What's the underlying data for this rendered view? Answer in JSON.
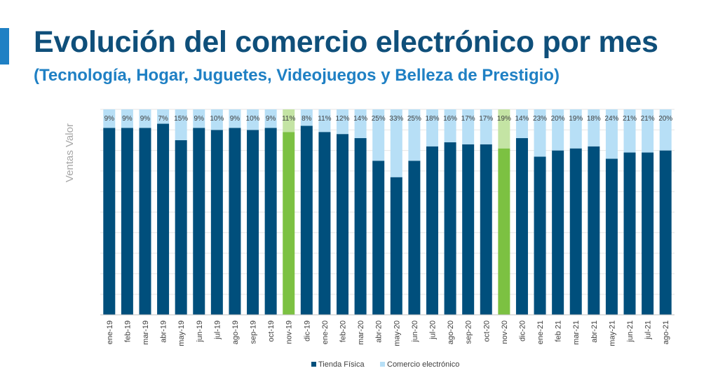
{
  "page": {
    "title": "Evolución del comercio electrónico por mes",
    "subtitle": "(Tecnología, Hogar, Juguetes, Videojuegos y Belleza de Prestigio)"
  },
  "colors": {
    "tienda": "#004f7c",
    "ecommerce": "#b7dff6",
    "tienda_highlight": "#7cc142",
    "ecommerce_highlight": "#c4e4a4",
    "accent": "#1f80c4",
    "title": "#0f4f7a"
  },
  "chart_data": {
    "type": "bar",
    "stacked": true,
    "ylabel": "Ventas Valor",
    "ylim": [
      0,
      100
    ],
    "grid": true,
    "legend_position": "bottom",
    "highlight_categories": [
      "nov-19",
      "nov-20"
    ],
    "categories": [
      "ene-19",
      "feb-19",
      "mar-19",
      "abr-19",
      "may-19",
      "jun-19",
      "jul-19",
      "ago-19",
      "sep-19",
      "oct-19",
      "nov-19",
      "dic-19",
      "ene-20",
      "feb-20",
      "mar-20",
      "abr-20",
      "may-20",
      "jun-20",
      "jul-20",
      "ago-20",
      "sep-20",
      "oct-20",
      "nov-20",
      "dic-20",
      "ene-21",
      "feb 21",
      "mar-21",
      "abr-21",
      "may-21",
      "jun-21",
      "jul-21",
      "ago-21"
    ],
    "series": [
      {
        "name": "Tienda Física",
        "values": [
          91,
          91,
          91,
          93,
          85,
          91,
          90,
          91,
          90,
          91,
          89,
          92,
          89,
          88,
          86,
          75,
          67,
          75,
          82,
          84,
          83,
          83,
          81,
          86,
          77,
          80,
          81,
          82,
          76,
          79,
          79,
          80
        ]
      },
      {
        "name": "Comercio electrónico",
        "values": [
          9,
          9,
          9,
          7,
          15,
          9,
          10,
          9,
          10,
          9,
          11,
          8,
          11,
          12,
          14,
          25,
          33,
          25,
          18,
          16,
          17,
          17,
          19,
          14,
          23,
          20,
          19,
          18,
          24,
          21,
          21,
          20
        ],
        "labels": [
          "9%",
          "9%",
          "9%",
          "7%",
          "15%",
          "9%",
          "10%",
          "9%",
          "10%",
          "9%",
          "11%",
          "8%",
          "11%",
          "12%",
          "14%",
          "25%",
          "33%",
          "25%",
          "18%",
          "16%",
          "17%",
          "17%",
          "19%",
          "14%",
          "23%",
          "20%",
          "19%",
          "18%",
          "24%",
          "21%",
          "21%",
          "20%"
        ]
      }
    ]
  }
}
